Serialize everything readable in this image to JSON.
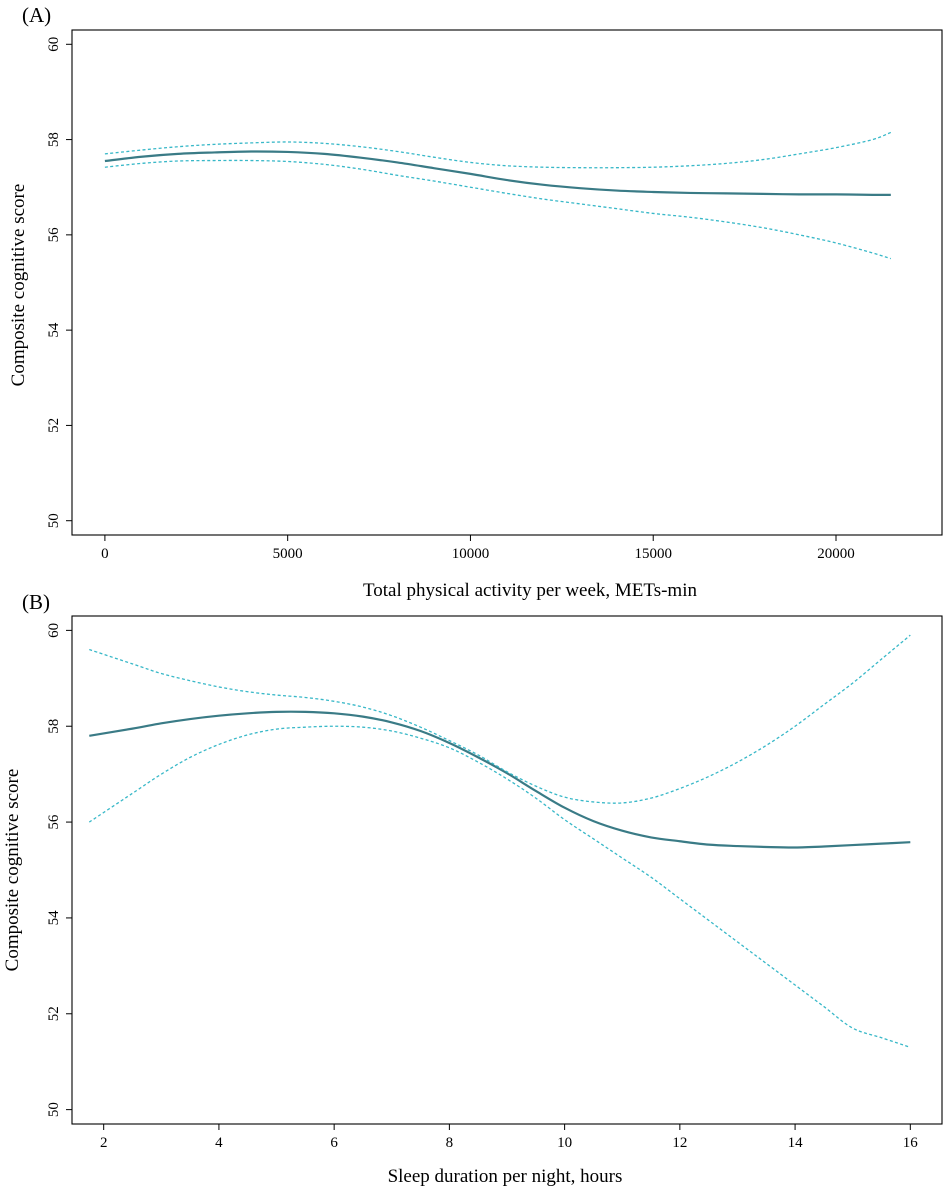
{
  "chart_data": [
    {
      "type": "line",
      "panel_label": "(A)",
      "xlabel": "Total physical activity per week, METs-min",
      "ylabel": "Composite cognitive score",
      "xlim": [
        -900,
        22900
      ],
      "ylim": [
        49.7,
        60.3
      ],
      "xticks": [
        0,
        5000,
        10000,
        15000,
        20000
      ],
      "xtick_labels": [
        "0",
        "5000",
        "10000",
        "15000",
        "20000"
      ],
      "yticks": [
        50,
        52,
        54,
        56,
        58,
        60
      ],
      "ytick_labels": [
        "50",
        "52",
        "54",
        "56",
        "58",
        "60"
      ],
      "grid": false,
      "colors": {
        "estimate": "#3a7b86",
        "ci": "#38b8c8"
      },
      "x": [
        0,
        1000,
        2000,
        3000,
        4000,
        5000,
        6000,
        7000,
        8000,
        9000,
        10000,
        11000,
        12000,
        13000,
        14000,
        15000,
        16000,
        17000,
        18000,
        19000,
        20000,
        21000,
        21500
      ],
      "series": [
        {
          "role": "estimate",
          "style": "solid",
          "values": [
            57.55,
            57.64,
            57.7,
            57.73,
            57.75,
            57.74,
            57.7,
            57.62,
            57.52,
            57.4,
            57.28,
            57.15,
            57.05,
            56.98,
            56.93,
            56.9,
            56.88,
            56.87,
            56.86,
            56.85,
            56.85,
            56.84,
            56.84
          ]
        },
        {
          "role": "ci-upper",
          "style": "dashed",
          "values": [
            57.7,
            57.78,
            57.85,
            57.9,
            57.93,
            57.95,
            57.92,
            57.85,
            57.75,
            57.63,
            57.52,
            57.45,
            57.42,
            57.41,
            57.41,
            57.42,
            57.45,
            57.5,
            57.58,
            57.7,
            57.83,
            58.0,
            58.15
          ]
        },
        {
          "role": "ci-lower",
          "style": "dashed",
          "values": [
            57.42,
            57.5,
            57.55,
            57.56,
            57.56,
            57.54,
            57.48,
            57.38,
            57.25,
            57.13,
            57.0,
            56.87,
            56.75,
            56.65,
            56.55,
            56.45,
            56.37,
            56.27,
            56.15,
            56.0,
            55.83,
            55.62,
            55.5
          ]
        }
      ]
    },
    {
      "type": "line",
      "panel_label": "(B)",
      "xlabel": "Sleep duration per night, hours",
      "ylabel": "Composite cognitive score",
      "xlim": [
        1.45,
        16.55
      ],
      "ylim": [
        49.7,
        60.3
      ],
      "xticks": [
        2,
        4,
        6,
        8,
        10,
        12,
        14,
        16
      ],
      "xtick_labels": [
        "2",
        "4",
        "6",
        "8",
        "10",
        "12",
        "14",
        "16"
      ],
      "yticks": [
        50,
        52,
        54,
        56,
        58,
        60
      ],
      "ytick_labels": [
        "50",
        "52",
        "54",
        "56",
        "58",
        "60"
      ],
      "grid": false,
      "colors": {
        "estimate": "#3a7b86",
        "ci": "#38b8c8"
      },
      "x": [
        1.75,
        2.5,
        3,
        3.5,
        4,
        4.5,
        5,
        5.5,
        6,
        6.5,
        7,
        7.5,
        8,
        8.5,
        9,
        9.5,
        10,
        10.5,
        11,
        11.5,
        12,
        12.5,
        13,
        13.5,
        14,
        14.5,
        15,
        15.5,
        16
      ],
      "series": [
        {
          "role": "estimate",
          "style": "solid",
          "values": [
            57.8,
            57.95,
            58.06,
            58.15,
            58.22,
            58.27,
            58.3,
            58.3,
            58.27,
            58.2,
            58.08,
            57.9,
            57.65,
            57.35,
            57.02,
            56.65,
            56.3,
            56.02,
            55.82,
            55.68,
            55.6,
            55.53,
            55.5,
            55.48,
            55.47,
            55.49,
            55.52,
            55.55,
            55.58
          ]
        },
        {
          "role": "ci-upper",
          "style": "dashed",
          "values": [
            59.6,
            59.3,
            59.1,
            58.95,
            58.82,
            58.72,
            58.65,
            58.6,
            58.52,
            58.4,
            58.22,
            57.98,
            57.7,
            57.4,
            57.05,
            56.75,
            56.52,
            56.42,
            56.4,
            56.5,
            56.7,
            56.95,
            57.25,
            57.6,
            58.0,
            58.45,
            58.9,
            59.4,
            59.9
          ]
        },
        {
          "role": "ci-lower",
          "style": "dashed",
          "values": [
            56.0,
            56.6,
            57.0,
            57.35,
            57.62,
            57.82,
            57.94,
            57.98,
            58.0,
            57.98,
            57.9,
            57.75,
            57.55,
            57.25,
            56.9,
            56.5,
            56.05,
            55.65,
            55.25,
            54.85,
            54.4,
            53.95,
            53.5,
            53.05,
            52.6,
            52.15,
            51.7,
            51.5,
            51.3
          ]
        }
      ]
    }
  ]
}
